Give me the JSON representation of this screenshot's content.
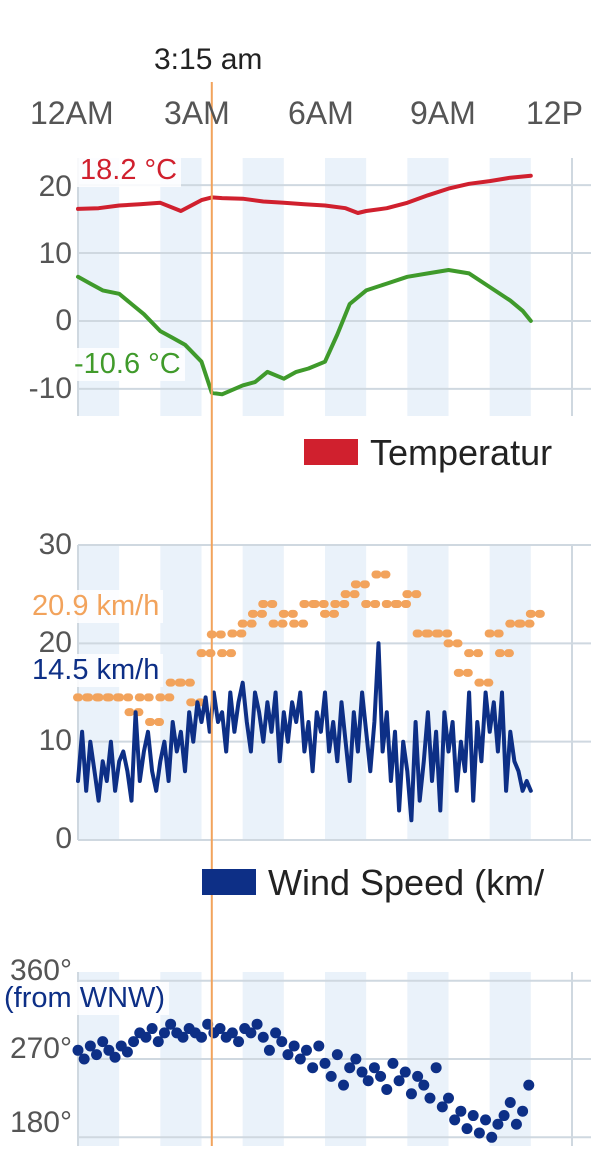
{
  "cursor": {
    "time_label": "3:15 am",
    "time_hours": 3.25
  },
  "x_axis": {
    "tick_labels": [
      "12AM",
      "3AM",
      "6AM",
      "9AM",
      "12P"
    ],
    "tick_hours": [
      0,
      3,
      6,
      9,
      12
    ]
  },
  "colors": {
    "temperature": "#d0202e",
    "dew_point": "#3f9a2b",
    "wind_speed": "#0d2f86",
    "wind_gust": "#f2a35c",
    "wind_dir": "#0d2f86",
    "cursor": "#f2a35c",
    "band": "#eaf2fa",
    "grid": "#cfd8e0"
  },
  "temperature_panel": {
    "y_tick_labels": [
      "20",
      "10",
      "0",
      "-10"
    ],
    "readout_temp": "18.2 °C",
    "readout_dew": "-10.6 °C",
    "legend_label": "Temperatur"
  },
  "wind_panel": {
    "y_tick_labels": [
      "30",
      "20",
      "10",
      "0"
    ],
    "readout_gust": "20.9 km/h",
    "readout_speed": "14.5 km/h",
    "legend_label": "Wind Speed (km/"
  },
  "direction_panel": {
    "y_tick_labels": [
      "360°",
      "270°",
      "180°"
    ],
    "readout_dir": "(from WNW)"
  },
  "chart_data": [
    {
      "type": "line",
      "ylim": [
        -14,
        24
      ],
      "series": [
        {
          "x": [
            0,
            0.5,
            1,
            1.5,
            2,
            2.5,
            3,
            3.25,
            3.5,
            4,
            4.5,
            5,
            5.5,
            6,
            6.5,
            6.8,
            7,
            7.5,
            8,
            8.5,
            9,
            9.5,
            10,
            10.5,
            11
          ],
          "y": [
            16.5,
            16.6,
            17,
            17.2,
            17.4,
            16.2,
            17.8,
            18.2,
            18.1,
            18,
            17.6,
            17.4,
            17.2,
            17,
            16.6,
            15.9,
            16.2,
            16.6,
            17.4,
            18.5,
            19.5,
            20.2,
            20.6,
            21.1,
            21.4
          ]
        },
        {
          "x": [
            0,
            0.3,
            0.6,
            1,
            1.3,
            1.6,
            2,
            2.3,
            2.6,
            3,
            3.25,
            3.5,
            4,
            4.3,
            4.6,
            5,
            5.3,
            5.6,
            6,
            6.3,
            6.6,
            7,
            7.5,
            8,
            8.5,
            9,
            9.5,
            10,
            10.5,
            10.8,
            11
          ],
          "y": [
            6.5,
            5.5,
            4.5,
            4,
            2.5,
            1,
            -1.5,
            -2.5,
            -3.5,
            -6,
            -10.6,
            -10.8,
            -9.5,
            -9,
            -7.5,
            -8.5,
            -7.5,
            -7,
            -6,
            -2,
            2.5,
            4.5,
            5.5,
            6.5,
            7,
            7.5,
            7,
            5,
            3,
            1.5,
            0
          ]
        }
      ]
    },
    {
      "type": "line",
      "ylim": [
        0,
        30
      ],
      "series": [
        {
          "x": [
            0,
            0.1,
            0.2,
            0.3,
            0.4,
            0.5,
            0.6,
            0.7,
            0.8,
            0.9,
            1,
            1.1,
            1.2,
            1.3,
            1.4,
            1.5,
            1.6,
            1.7,
            1.8,
            1.9,
            2,
            2.1,
            2.2,
            2.3,
            2.4,
            2.5,
            2.6,
            2.7,
            2.8,
            2.9,
            3,
            3.1,
            3.2,
            3.3,
            3.4,
            3.5,
            3.6,
            3.7,
            3.8,
            3.9,
            4,
            4.1,
            4.2,
            4.3,
            4.4,
            4.5,
            4.6,
            4.7,
            4.8,
            4.9,
            5,
            5.1,
            5.2,
            5.3,
            5.4,
            5.5,
            5.6,
            5.7,
            5.8,
            5.9,
            6,
            6.1,
            6.2,
            6.3,
            6.4,
            6.5,
            6.6,
            6.7,
            6.8,
            6.9,
            7,
            7.1,
            7.2,
            7.3,
            7.4,
            7.5,
            7.6,
            7.7,
            7.8,
            7.9,
            8,
            8.1,
            8.2,
            8.3,
            8.4,
            8.5,
            8.6,
            8.7,
            8.8,
            8.9,
            9,
            9.1,
            9.2,
            9.3,
            9.4,
            9.5,
            9.6,
            9.7,
            9.8,
            9.9,
            10,
            10.1,
            10.2,
            10.3,
            10.4,
            10.5,
            10.6,
            10.7,
            10.8,
            10.9,
            11
          ],
          "y": [
            6,
            11,
            5,
            10,
            7,
            4,
            8,
            6,
            10,
            5,
            8,
            9,
            7,
            4,
            13,
            6,
            9,
            11,
            7,
            5,
            8,
            10,
            6,
            12,
            9,
            11,
            7,
            13,
            10,
            14,
            12,
            14.5,
            11,
            15,
            12,
            13,
            9,
            15,
            11,
            14,
            16,
            12,
            9,
            15,
            13,
            10,
            14,
            11,
            15,
            8,
            13,
            10,
            14,
            12,
            15,
            9,
            12,
            7,
            13,
            11,
            15,
            9,
            12,
            8,
            14,
            10,
            6,
            13,
            9,
            15,
            11,
            7,
            12,
            20,
            9,
            13,
            6,
            11,
            3,
            10,
            7,
            2,
            12,
            4,
            8,
            13,
            6,
            11,
            3,
            13,
            9,
            12,
            5,
            10,
            7,
            15,
            4,
            12,
            8,
            15,
            11,
            14,
            9,
            15,
            5,
            11,
            8,
            7,
            5,
            6,
            5
          ]
        },
        {
          "x": [
            0,
            0.25,
            0.5,
            0.75,
            1,
            1.25,
            1.5,
            1.75,
            2,
            2.25,
            2.5,
            2.75,
            3,
            3.25,
            3.5,
            3.75,
            4,
            4.25,
            4.5,
            4.75,
            5,
            5.25,
            5.5,
            5.75,
            6,
            6.25,
            6.5,
            6.75,
            7,
            7.25,
            7.5,
            7.75,
            8,
            8.25,
            8.5,
            8.75,
            9,
            9.25,
            9.5,
            9.75,
            10,
            10.25,
            10.5,
            10.75,
            11
          ],
          "y": [
            14.5,
            14.5,
            14.5,
            14.5,
            14.5,
            13,
            14.5,
            12,
            14.5,
            16,
            16,
            14,
            19,
            20.9,
            19,
            21,
            22,
            23,
            24,
            22,
            23,
            22,
            24,
            24,
            23,
            24,
            25,
            26,
            24,
            27,
            24,
            24,
            25,
            21,
            21,
            21,
            20,
            17,
            19,
            16,
            21,
            19,
            22,
            22,
            23
          ]
        }
      ]
    },
    {
      "type": "scatter",
      "ylim": [
        170,
        370
      ],
      "series": [
        {
          "x": [
            0,
            0.15,
            0.3,
            0.45,
            0.6,
            0.75,
            0.9,
            1.05,
            1.2,
            1.35,
            1.5,
            1.65,
            1.8,
            1.95,
            2.1,
            2.25,
            2.4,
            2.55,
            2.7,
            2.85,
            3,
            3.15,
            3.3,
            3.45,
            3.6,
            3.75,
            3.9,
            4.05,
            4.2,
            4.35,
            4.5,
            4.65,
            4.8,
            4.95,
            5.1,
            5.25,
            5.4,
            5.55,
            5.7,
            5.85,
            6,
            6.15,
            6.3,
            6.45,
            6.6,
            6.75,
            6.9,
            7.05,
            7.2,
            7.35,
            7.5,
            7.65,
            7.8,
            7.95,
            8.1,
            8.25,
            8.4,
            8.55,
            8.7,
            8.85,
            9,
            9.15,
            9.3,
            9.45,
            9.6,
            9.75,
            9.9,
            10.05,
            10.2,
            10.35,
            10.5,
            10.65,
            10.8,
            10.95
          ],
          "y": [
            280,
            270,
            285,
            275,
            290,
            280,
            272,
            285,
            278,
            290,
            300,
            295,
            305,
            290,
            300,
            310,
            300,
            295,
            305,
            300,
            295,
            310,
            300,
            305,
            295,
            300,
            290,
            305,
            300,
            310,
            295,
            280,
            300,
            290,
            275,
            285,
            270,
            280,
            260,
            285,
            265,
            250,
            275,
            240,
            260,
            270,
            255,
            245,
            260,
            250,
            235,
            265,
            245,
            255,
            230,
            250,
            240,
            225,
            260,
            215,
            225,
            200,
            210,
            190,
            205,
            185,
            200,
            180,
            195,
            205,
            220,
            195,
            210,
            240
          ]
        }
      ]
    }
  ]
}
